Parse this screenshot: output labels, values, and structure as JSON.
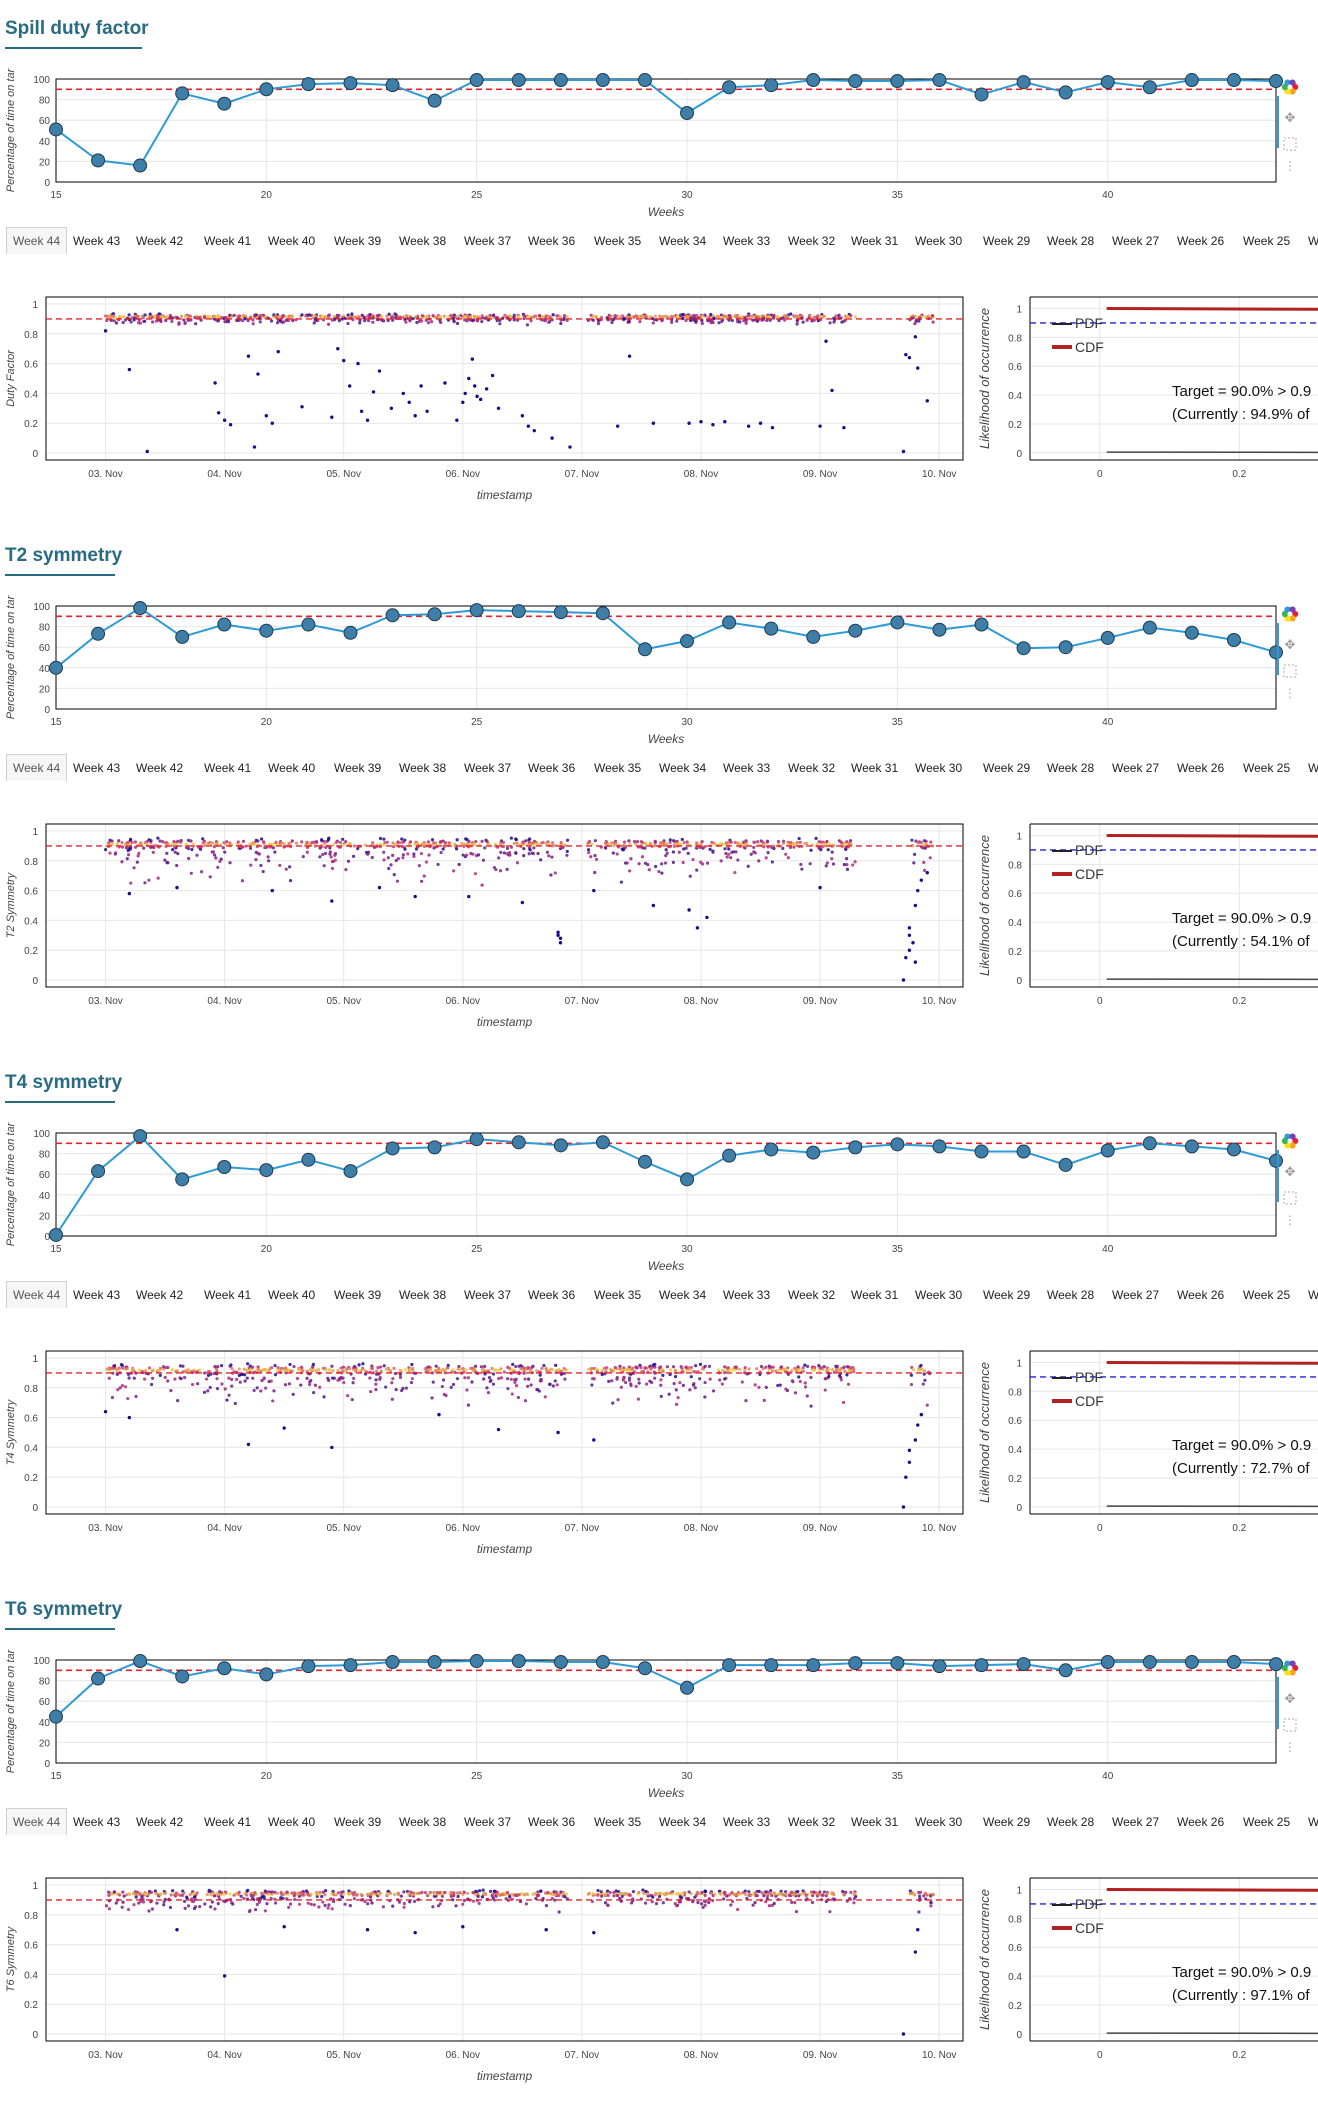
{
  "tabs": [
    "Week 44",
    "Week 43",
    "Week 42",
    "Week 41",
    "Week 40",
    "Week 39",
    "Week 38",
    "Week 37",
    "Week 36",
    "Week 35",
    "Week 34",
    "Week 33",
    "Week 32",
    "Week 31",
    "Week 30",
    "Week 29",
    "Week 28",
    "Week 27",
    "Week 26",
    "Week 25",
    "W"
  ],
  "colors": {
    "title": "#2a6b84",
    "line": "#2e9bd6",
    "marker": "#3f7ea6",
    "target": "#e8202a",
    "cdf": "#b22222",
    "pdf_ref": "#2222dd",
    "scatter_low": "#1a0a8c",
    "scatter_mid": "#c3307d",
    "scatter_high": "#f5d53a"
  },
  "toolbar_icons": [
    "bokeh-logo-icon",
    "pan-icon",
    "zoom-icon",
    "more-icon"
  ],
  "sections": [
    {
      "title": "Spill duty factor",
      "weekly": {
        "type": "line",
        "ylabel": "Percentage of time on tar",
        "xlabel": "Weeks",
        "xlim": [
          15,
          44
        ],
        "ylim": [
          0,
          100
        ],
        "xticks": [
          15,
          20,
          25,
          30,
          35,
          40
        ],
        "yticks": [
          0,
          20,
          40,
          60,
          80,
          100
        ],
        "target": 90,
        "x": [
          15,
          16,
          17,
          18,
          19,
          20,
          21,
          22,
          23,
          24,
          25,
          26,
          27,
          28,
          29,
          30,
          31,
          32,
          33,
          34,
          35,
          36,
          37,
          38,
          39,
          40,
          41,
          42,
          43,
          44
        ],
        "y": [
          51,
          21,
          16,
          86,
          76,
          90,
          95,
          96,
          94,
          79,
          99,
          99,
          99,
          99,
          99,
          67,
          92,
          94,
          99,
          98,
          98,
          99,
          85,
          97,
          87,
          97,
          92,
          99,
          99,
          98
        ]
      },
      "scatter": {
        "type": "scatter",
        "ylabel": "Duty Factor",
        "xlabel": "timestamp",
        "ylim": [
          0,
          1
        ],
        "yticks": [
          0,
          0.2,
          0.4,
          0.6,
          0.8,
          1
        ],
        "target": 0.9,
        "xticks": [
          "03. Nov",
          "04. Nov",
          "05. Nov",
          "06. Nov",
          "07. Nov",
          "08. Nov",
          "09. Nov",
          "10. Nov"
        ],
        "xlim": [
          2.5,
          10.2
        ],
        "band_center": 0.915,
        "band_halfwidth": 0.02,
        "low_spread": 0.04,
        "gaps": [
          [
            6.88,
            7.05
          ],
          [
            9.3,
            9.75
          ]
        ],
        "outliers": [
          [
            3.0,
            0.82
          ],
          [
            3.2,
            0.56
          ],
          [
            3.35,
            0.01
          ],
          [
            3.92,
            0.47
          ],
          [
            3.95,
            0.27
          ],
          [
            4.0,
            0.22
          ],
          [
            4.05,
            0.19
          ],
          [
            4.2,
            0.65
          ],
          [
            4.25,
            0.04
          ],
          [
            4.28,
            0.53
          ],
          [
            4.35,
            0.25
          ],
          [
            4.4,
            0.2
          ],
          [
            4.45,
            0.68
          ],
          [
            4.65,
            0.31
          ],
          [
            4.9,
            0.24
          ],
          [
            4.95,
            0.7
          ],
          [
            5.0,
            0.62
          ],
          [
            5.05,
            0.45
          ],
          [
            5.12,
            0.6
          ],
          [
            5.15,
            0.28
          ],
          [
            5.2,
            0.22
          ],
          [
            5.25,
            0.41
          ],
          [
            5.3,
            0.55
          ],
          [
            5.4,
            0.3
          ],
          [
            5.5,
            0.4
          ],
          [
            5.55,
            0.34
          ],
          [
            5.6,
            0.25
          ],
          [
            5.65,
            0.45
          ],
          [
            5.7,
            0.28
          ],
          [
            5.85,
            0.47
          ],
          [
            5.95,
            0.22
          ],
          [
            6.0,
            0.34
          ],
          [
            6.02,
            0.4
          ],
          [
            6.05,
            0.5
          ],
          [
            6.08,
            0.63
          ],
          [
            6.1,
            0.45
          ],
          [
            6.12,
            0.38
          ],
          [
            6.15,
            0.36
          ],
          [
            6.2,
            0.43
          ],
          [
            6.25,
            0.52
          ],
          [
            6.3,
            0.3
          ],
          [
            6.5,
            0.25
          ],
          [
            6.55,
            0.18
          ],
          [
            6.6,
            0.15
          ],
          [
            6.75,
            0.1
          ],
          [
            6.9,
            0.04
          ],
          [
            7.3,
            0.18
          ],
          [
            7.4,
            0.65
          ],
          [
            7.6,
            0.2
          ],
          [
            7.9,
            0.2
          ],
          [
            8.0,
            0.21
          ],
          [
            8.1,
            0.19
          ],
          [
            8.2,
            0.21
          ],
          [
            8.4,
            0.18
          ],
          [
            8.5,
            0.2
          ],
          [
            8.6,
            0.17
          ],
          [
            9.0,
            0.18
          ],
          [
            9.05,
            0.75
          ],
          [
            9.1,
            0.42
          ],
          [
            9.2,
            0.17
          ],
          [
            9.7,
            0.01
          ],
          [
            9.72,
            0.66
          ],
          [
            9.75,
            0.64
          ],
          [
            9.8,
            0.78
          ],
          [
            9.82,
            0.57
          ],
          [
            9.9,
            0.35
          ]
        ]
      },
      "dist": {
        "ylabel": "Likelihood of occurrence",
        "yticks": [
          0,
          0.2,
          0.4,
          0.6,
          0.8,
          1
        ],
        "xticks": [
          0,
          0.2
        ],
        "xlim": [
          -0.1,
          0.33
        ],
        "ylim": [
          -0.05,
          1.08
        ],
        "legend": [
          "PDF",
          "CDF"
        ],
        "target_text": "Target = 90.0% > 0.9",
        "current_text": "(Currently : 94.9% of",
        "ref_level": 0.9
      }
    },
    {
      "title": "T2 symmetry",
      "weekly": {
        "type": "line",
        "ylabel": "Percentage of time on tar",
        "xlabel": "Weeks",
        "xlim": [
          15,
          44
        ],
        "ylim": [
          0,
          100
        ],
        "xticks": [
          15,
          20,
          25,
          30,
          35,
          40
        ],
        "yticks": [
          0,
          20,
          40,
          60,
          80,
          100
        ],
        "target": 90,
        "x": [
          15,
          16,
          17,
          18,
          19,
          20,
          21,
          22,
          23,
          24,
          25,
          26,
          27,
          28,
          29,
          30,
          31,
          32,
          33,
          34,
          35,
          36,
          37,
          38,
          39,
          40,
          41,
          42,
          43,
          44
        ],
        "y": [
          40,
          73,
          98,
          70,
          82,
          76,
          82,
          74,
          91,
          92,
          96,
          95,
          94,
          93,
          58,
          66,
          84,
          78,
          70,
          76,
          84,
          77,
          82,
          59,
          60,
          69,
          79,
          74,
          67,
          55
        ]
      },
      "scatter": {
        "type": "scatter",
        "ylabel": "T2 Symmetry",
        "xlabel": "timestamp",
        "ylim": [
          0,
          1
        ],
        "yticks": [
          0,
          0.2,
          0.4,
          0.6,
          0.8,
          1
        ],
        "target": 0.9,
        "xticks": [
          "03. Nov",
          "04. Nov",
          "05. Nov",
          "06. Nov",
          "07. Nov",
          "08. Nov",
          "09. Nov",
          "10. Nov"
        ],
        "xlim": [
          2.5,
          10.2
        ],
        "band_center": 0.91,
        "band_halfwidth": 0.05,
        "low_spread": 0.25,
        "gaps": [
          [
            6.88,
            7.05
          ],
          [
            9.3,
            9.75
          ]
        ],
        "outliers": [
          [
            3.2,
            0.58
          ],
          [
            3.6,
            0.62
          ],
          [
            4.4,
            0.6
          ],
          [
            4.9,
            0.53
          ],
          [
            5.3,
            0.62
          ],
          [
            5.6,
            0.56
          ],
          [
            6.05,
            0.56
          ],
          [
            6.5,
            0.52
          ],
          [
            6.8,
            0.32
          ],
          [
            6.8,
            0.3
          ],
          [
            6.82,
            0.28
          ],
          [
            6.82,
            0.25
          ],
          [
            7.1,
            0.6
          ],
          [
            7.6,
            0.5
          ],
          [
            7.9,
            0.47
          ],
          [
            8.05,
            0.42
          ],
          [
            7.97,
            0.35
          ],
          [
            9.0,
            0.62
          ],
          [
            9.7,
            0.0
          ],
          [
            9.75,
            0.35
          ],
          [
            9.75,
            0.3
          ],
          [
            9.78,
            0.25
          ],
          [
            9.75,
            0.2
          ],
          [
            9.72,
            0.15
          ],
          [
            9.8,
            0.12
          ],
          [
            9.8,
            0.5
          ],
          [
            9.82,
            0.6
          ],
          [
            9.85,
            0.67
          ],
          [
            9.9,
            0.72
          ]
        ]
      },
      "dist": {
        "ylabel": "Likelihood of occurrence",
        "yticks": [
          0,
          0.2,
          0.4,
          0.6,
          0.8,
          1
        ],
        "xticks": [
          0,
          0.2
        ],
        "xlim": [
          -0.1,
          0.33
        ],
        "ylim": [
          -0.05,
          1.08
        ],
        "legend": [
          "PDF",
          "CDF"
        ],
        "target_text": "Target = 90.0% > 0.9",
        "current_text": "(Currently : 54.1% of",
        "ref_level": 0.9
      }
    },
    {
      "title": "T4 symmetry",
      "weekly": {
        "type": "line",
        "ylabel": "Percentage of time on tar",
        "xlabel": "Weeks",
        "xlim": [
          15,
          44
        ],
        "ylim": [
          0,
          100
        ],
        "xticks": [
          15,
          20,
          25,
          30,
          35,
          40
        ],
        "yticks": [
          0,
          20,
          40,
          60,
          80,
          100
        ],
        "target": 90,
        "x": [
          15,
          16,
          17,
          18,
          19,
          20,
          21,
          22,
          23,
          24,
          25,
          26,
          27,
          28,
          29,
          30,
          31,
          32,
          33,
          34,
          35,
          36,
          37,
          38,
          39,
          40,
          41,
          42,
          43,
          44
        ],
        "y": [
          1,
          63,
          97,
          55,
          67,
          64,
          74,
          63,
          85,
          86,
          94,
          91,
          88,
          91,
          72,
          55,
          78,
          84,
          81,
          86,
          89,
          87,
          82,
          82,
          69,
          83,
          90,
          87,
          84,
          73
        ]
      },
      "scatter": {
        "type": "scatter",
        "ylabel": "T4 Symmetry",
        "xlabel": "timestamp",
        "ylim": [
          0,
          1
        ],
        "yticks": [
          0,
          0.2,
          0.4,
          0.6,
          0.8,
          1
        ],
        "target": 0.9,
        "xticks": [
          "03. Nov",
          "04. Nov",
          "05. Nov",
          "06. Nov",
          "07. Nov",
          "08. Nov",
          "09. Nov",
          "10. Nov"
        ],
        "xlim": [
          2.5,
          10.2
        ],
        "band_center": 0.92,
        "band_halfwidth": 0.05,
        "low_spread": 0.22,
        "gaps": [
          [
            6.88,
            7.05
          ],
          [
            9.3,
            9.75
          ]
        ],
        "outliers": [
          [
            3.0,
            0.64
          ],
          [
            3.2,
            0.6
          ],
          [
            4.2,
            0.42
          ],
          [
            4.5,
            0.53
          ],
          [
            4.9,
            0.4
          ],
          [
            5.8,
            0.62
          ],
          [
            6.3,
            0.52
          ],
          [
            6.8,
            0.5
          ],
          [
            7.1,
            0.45
          ],
          [
            9.7,
            0.0
          ],
          [
            9.72,
            0.2
          ],
          [
            9.75,
            0.3
          ],
          [
            9.75,
            0.38
          ],
          [
            9.8,
            0.45
          ],
          [
            9.82,
            0.55
          ],
          [
            9.85,
            0.62
          ]
        ]
      },
      "dist": {
        "ylabel": "Likelihood of occurrence",
        "yticks": [
          0,
          0.2,
          0.4,
          0.6,
          0.8,
          1
        ],
        "xticks": [
          0,
          0.2
        ],
        "xlim": [
          -0.1,
          0.33
        ],
        "ylim": [
          -0.05,
          1.08
        ],
        "legend": [
          "PDF",
          "CDF"
        ],
        "target_text": "Target = 90.0% > 0.9",
        "current_text": "(Currently : 72.7% of",
        "ref_level": 0.9
      }
    },
    {
      "title": "T6 symmetry",
      "weekly": {
        "type": "line",
        "ylabel": "Percentage of time on tar",
        "xlabel": "Weeks",
        "xlim": [
          15,
          44
        ],
        "ylim": [
          0,
          100
        ],
        "xticks": [
          15,
          20,
          25,
          30,
          35,
          40
        ],
        "yticks": [
          0,
          20,
          40,
          60,
          80,
          100
        ],
        "target": 90,
        "x": [
          15,
          16,
          17,
          18,
          19,
          20,
          21,
          22,
          23,
          24,
          25,
          26,
          27,
          28,
          29,
          30,
          31,
          32,
          33,
          34,
          35,
          36,
          37,
          38,
          39,
          40,
          41,
          42,
          43,
          44
        ],
        "y": [
          45,
          82,
          99,
          84,
          92,
          86,
          94,
          95,
          98,
          98,
          99,
          99,
          98,
          98,
          92,
          73,
          95,
          95,
          95,
          97,
          97,
          94,
          95,
          96,
          90,
          98,
          98,
          98,
          98,
          96
        ]
      },
      "scatter": {
        "type": "scatter",
        "ylabel": "T6 Symmetry",
        "xlabel": "timestamp",
        "ylim": [
          0,
          1
        ],
        "yticks": [
          0,
          0.2,
          0.4,
          0.6,
          0.8,
          1
        ],
        "target": 0.9,
        "xticks": [
          "03. Nov",
          "04. Nov",
          "05. Nov",
          "06. Nov",
          "07. Nov",
          "08. Nov",
          "09. Nov",
          "10. Nov"
        ],
        "xlim": [
          2.5,
          10.2
        ],
        "band_center": 0.94,
        "band_halfwidth": 0.03,
        "low_spread": 0.1,
        "gaps": [
          [
            6.88,
            7.05
          ],
          [
            9.3,
            9.75
          ]
        ],
        "outliers": [
          [
            4.0,
            0.39
          ],
          [
            3.6,
            0.7
          ],
          [
            4.5,
            0.72
          ],
          [
            5.2,
            0.7
          ],
          [
            5.6,
            0.68
          ],
          [
            6.0,
            0.72
          ],
          [
            6.7,
            0.7
          ],
          [
            7.1,
            0.68
          ],
          [
            9.7,
            0.0
          ],
          [
            9.8,
            0.55
          ],
          [
            9.82,
            0.7
          ]
        ]
      },
      "dist": {
        "ylabel": "Likelihood of occurrence",
        "yticks": [
          0,
          0.2,
          0.4,
          0.6,
          0.8,
          1
        ],
        "xticks": [
          0,
          0.2
        ],
        "xlim": [
          -0.1,
          0.33
        ],
        "ylim": [
          -0.05,
          1.08
        ],
        "legend": [
          "PDF",
          "CDF"
        ],
        "target_text": "Target = 90.0% > 0.9",
        "current_text": "(Currently : 97.1% of",
        "ref_level": 0.9
      }
    }
  ]
}
